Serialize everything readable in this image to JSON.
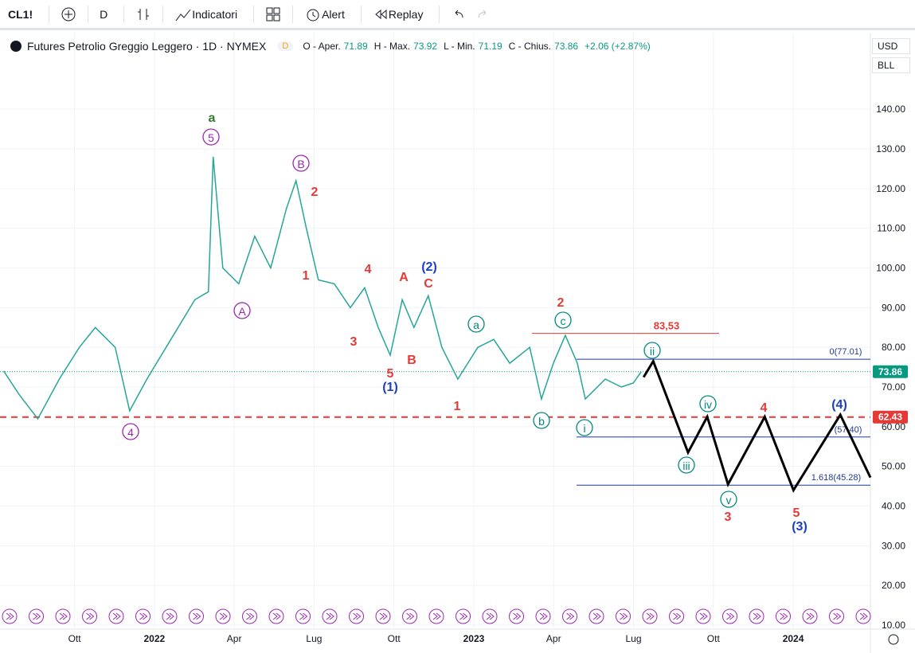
{
  "toolbar": {
    "symbol": "CL1!",
    "interval": "D",
    "indicators": "Indicatori",
    "alert": "Alert",
    "replay": "Replay"
  },
  "legend": {
    "title": "Futures Petrolio Greggio Leggero · 1D · NYMEX",
    "badge": "D",
    "open_label": "O - Aper.",
    "open": 71.89,
    "high_label": "H - Max.",
    "high": 73.92,
    "low_label": "L - Min.",
    "low": 71.19,
    "close_label": "C - Chius.",
    "close": 73.86,
    "change": "+2.06 (+2.87%)"
  },
  "scale": {
    "currency": "USD",
    "unit": "BLL"
  },
  "chart_data": {
    "type": "line",
    "xlim": [
      -2.8,
      29.9
    ],
    "ylim": [
      9,
      159.5
    ],
    "xticks": [
      {
        "value": 0,
        "label": "Ott"
      },
      {
        "value": 3,
        "label": "2022"
      },
      {
        "value": 6,
        "label": "Apr"
      },
      {
        "value": 9,
        "label": "Lug"
      },
      {
        "value": 12,
        "label": "Ott"
      },
      {
        "value": 15,
        "label": "2023"
      },
      {
        "value": 18,
        "label": "Apr"
      },
      {
        "value": 21,
        "label": "Lug"
      },
      {
        "value": 24,
        "label": "Ott"
      },
      {
        "value": 27,
        "label": "2024"
      }
    ],
    "yticks": [
      {
        "value": 140,
        "label": "140.00"
      },
      {
        "value": 130,
        "label": "130.00"
      },
      {
        "value": 120,
        "label": "120.00"
      },
      {
        "value": 110,
        "label": "110.00"
      },
      {
        "value": 100,
        "label": "100.00"
      },
      {
        "value": 90,
        "label": "90.00"
      },
      {
        "value": 80,
        "label": "80.00"
      },
      {
        "value": 70,
        "label": "70.00"
      },
      {
        "value": 60,
        "label": "60.00"
      },
      {
        "value": 50,
        "label": "50.00"
      },
      {
        "value": 40,
        "label": "40.00"
      },
      {
        "value": 30,
        "label": "30.00"
      },
      {
        "value": 20,
        "label": "20.00"
      },
      {
        "value": 10,
        "label": "10.00"
      }
    ],
    "series": [
      {
        "color": "#26a69a",
        "x": [
          -2.66,
          -2.07,
          -1.38,
          -0.57,
          0.18,
          0.78,
          1.53,
          2.07,
          2.72,
          3.62,
          4.52,
          5.03,
          5.21,
          5.57,
          6.17,
          6.77,
          7.37,
          7.96,
          8.32,
          8.71,
          9.16,
          9.76,
          10.36,
          10.9,
          11.41,
          11.86,
          12.31,
          12.75,
          13.29,
          13.8,
          14.4,
          15.15,
          15.75,
          16.35,
          17.1,
          17.54,
          17.99,
          18.44,
          18.89,
          19.19,
          19.94,
          20.54,
          20.99,
          21.29
        ],
        "values": [
          74,
          68,
          62,
          72,
          80,
          85,
          80,
          64,
          72,
          82,
          92,
          94,
          128,
          100,
          96,
          108,
          100,
          115,
          122,
          110,
          97,
          96,
          90,
          95,
          85,
          78,
          92,
          85,
          93,
          80,
          72,
          80,
          82,
          76,
          80,
          67,
          76,
          83,
          76,
          67,
          72,
          70,
          71,
          73.86
        ]
      },
      {
        "color": "#000000",
        "x": [
          21.38,
          21.74,
          23.05,
          23.77,
          24.55,
          25.93,
          27.01,
          28.77,
          29.9
        ],
        "values": [
          72.5,
          76.5,
          53.5,
          62.5,
          45.5,
          62.5,
          44,
          63,
          47.2
        ]
      }
    ],
    "last_price": 73.86,
    "support": 62.43,
    "levels": [
      {
        "value": 83.53,
        "label": "83,53",
        "color": "#e53935"
      },
      {
        "value": 77.01,
        "label": "0(77.01)",
        "color": "#1e3a9a"
      },
      {
        "value": 57.4,
        "label": "(57.40)",
        "color": "#1e3a9a"
      },
      {
        "value": 45.28,
        "label": "1.618(45.28)",
        "color": "#1e3a9a"
      }
    ],
    "annotations": [
      {
        "text": "a",
        "color": "#2e7d32"
      },
      {
        "text": "5",
        "color": "#9c27b0"
      },
      {
        "text": "B",
        "color": "#9c27b0"
      },
      {
        "text": "2",
        "color": "#e53935"
      },
      {
        "text": "A",
        "color": "#9c27b0"
      },
      {
        "text": "4",
        "color": "#9c27b0"
      },
      {
        "text": "1",
        "color": "#e53935"
      },
      {
        "text": "4",
        "color": "#e53935"
      },
      {
        "text": "3",
        "color": "#e53935"
      },
      {
        "text": "A",
        "color": "#e53935"
      },
      {
        "text": "C",
        "color": "#e53935"
      },
      {
        "text": "(2)",
        "color": "#1e40c0"
      },
      {
        "text": "B",
        "color": "#e53935"
      },
      {
        "text": "5",
        "color": "#e53935"
      },
      {
        "text": "(1)",
        "color": "#1e40c0"
      },
      {
        "text": "1",
        "color": "#e53935"
      },
      {
        "text": "a",
        "color": "#00897b"
      },
      {
        "text": "b",
        "color": "#00897b"
      },
      {
        "text": "2",
        "color": "#e53935"
      },
      {
        "text": "c",
        "color": "#00897b"
      },
      {
        "text": "i",
        "color": "#00897b"
      },
      {
        "text": "ii",
        "color": "#00897b"
      },
      {
        "text": "iii",
        "color": "#00897b"
      },
      {
        "text": "iv",
        "color": "#00897b"
      },
      {
        "text": "v",
        "color": "#00897b"
      },
      {
        "text": "3",
        "color": "#e53935"
      },
      {
        "text": "4",
        "color": "#e53935"
      },
      {
        "text": "5",
        "color": "#e53935"
      },
      {
        "text": "(3)",
        "color": "#1e40c0"
      },
      {
        "text": "(4)",
        "color": "#1e40c0"
      }
    ]
  }
}
